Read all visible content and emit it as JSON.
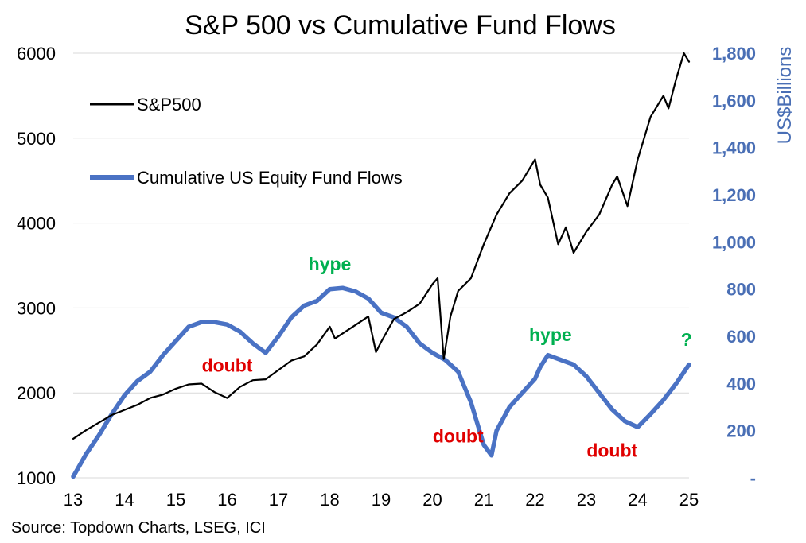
{
  "chart_data": {
    "type": "line",
    "title": "S&P 500 vs Cumulative Fund Flows",
    "y2label": "US$Billions",
    "source": "Source: Topdown Charts, LSEG, ICI",
    "grid": "horizontal",
    "legend_position": "top-left",
    "xlim": [
      13,
      25
    ],
    "x_ticks": [
      13,
      14,
      15,
      16,
      17,
      18,
      19,
      20,
      21,
      22,
      23,
      24,
      25
    ],
    "x_tick_labels": [
      "13",
      "14",
      "15",
      "16",
      "17",
      "18",
      "19",
      "20",
      "21",
      "22",
      "23",
      "24",
      "25"
    ],
    "ylim": [
      1000,
      6000
    ],
    "y_ticks": [
      1000,
      2000,
      3000,
      4000,
      5000,
      6000
    ],
    "y_tick_labels": [
      "1000",
      "2000",
      "3000",
      "4000",
      "5000",
      "6000"
    ],
    "y2lim": [
      0,
      1800
    ],
    "y2_ticks": [
      0,
      200,
      400,
      600,
      800,
      1000,
      1200,
      1400,
      1600,
      1800
    ],
    "y2_tick_labels": [
      "-",
      "200",
      "400",
      "600",
      "800",
      "1,000",
      "1,200",
      "1,400",
      "1,600",
      "1,800"
    ],
    "series": [
      {
        "name": "S&P500",
        "axis": "left",
        "color": "#000000",
        "points": [
          [
            13.0,
            1460
          ],
          [
            13.25,
            1560
          ],
          [
            13.5,
            1650
          ],
          [
            13.75,
            1740
          ],
          [
            14.0,
            1800
          ],
          [
            14.25,
            1860
          ],
          [
            14.5,
            1940
          ],
          [
            14.75,
            1980
          ],
          [
            15.0,
            2050
          ],
          [
            15.25,
            2100
          ],
          [
            15.5,
            2110
          ],
          [
            15.75,
            2010
          ],
          [
            16.0,
            1940
          ],
          [
            16.25,
            2070
          ],
          [
            16.5,
            2150
          ],
          [
            16.75,
            2160
          ],
          [
            17.0,
            2270
          ],
          [
            17.25,
            2380
          ],
          [
            17.5,
            2430
          ],
          [
            17.75,
            2570
          ],
          [
            18.0,
            2780
          ],
          [
            18.1,
            2640
          ],
          [
            18.25,
            2700
          ],
          [
            18.5,
            2800
          ],
          [
            18.75,
            2900
          ],
          [
            18.9,
            2480
          ],
          [
            19.0,
            2600
          ],
          [
            19.25,
            2870
          ],
          [
            19.5,
            2950
          ],
          [
            19.75,
            3050
          ],
          [
            20.0,
            3280
          ],
          [
            20.1,
            3350
          ],
          [
            20.22,
            2400
          ],
          [
            20.35,
            2900
          ],
          [
            20.5,
            3200
          ],
          [
            20.75,
            3350
          ],
          [
            21.0,
            3750
          ],
          [
            21.25,
            4100
          ],
          [
            21.5,
            4350
          ],
          [
            21.75,
            4500
          ],
          [
            22.0,
            4750
          ],
          [
            22.1,
            4450
          ],
          [
            22.25,
            4300
          ],
          [
            22.45,
            3750
          ],
          [
            22.6,
            3950
          ],
          [
            22.75,
            3650
          ],
          [
            23.0,
            3900
          ],
          [
            23.25,
            4100
          ],
          [
            23.5,
            4450
          ],
          [
            23.6,
            4550
          ],
          [
            23.8,
            4200
          ],
          [
            24.0,
            4750
          ],
          [
            24.25,
            5250
          ],
          [
            24.5,
            5500
          ],
          [
            24.6,
            5350
          ],
          [
            24.75,
            5700
          ],
          [
            24.9,
            6000
          ],
          [
            25.0,
            5900
          ]
        ]
      },
      {
        "name": "Cumulative US Equity Fund Flows",
        "axis": "right",
        "color": "#4a72c4",
        "points": [
          [
            13.0,
            5
          ],
          [
            13.25,
            100
          ],
          [
            13.5,
            180
          ],
          [
            13.75,
            270
          ],
          [
            14.0,
            350
          ],
          [
            14.25,
            410
          ],
          [
            14.5,
            450
          ],
          [
            14.75,
            520
          ],
          [
            15.0,
            580
          ],
          [
            15.25,
            640
          ],
          [
            15.5,
            660
          ],
          [
            15.75,
            660
          ],
          [
            16.0,
            650
          ],
          [
            16.25,
            620
          ],
          [
            16.5,
            570
          ],
          [
            16.75,
            530
          ],
          [
            17.0,
            600
          ],
          [
            17.25,
            680
          ],
          [
            17.5,
            730
          ],
          [
            17.75,
            750
          ],
          [
            18.0,
            800
          ],
          [
            18.25,
            805
          ],
          [
            18.5,
            790
          ],
          [
            18.75,
            760
          ],
          [
            19.0,
            700
          ],
          [
            19.25,
            680
          ],
          [
            19.5,
            640
          ],
          [
            19.75,
            570
          ],
          [
            20.0,
            530
          ],
          [
            20.25,
            500
          ],
          [
            20.5,
            450
          ],
          [
            20.75,
            320
          ],
          [
            21.0,
            140
          ],
          [
            21.15,
            95
          ],
          [
            21.25,
            200
          ],
          [
            21.5,
            300
          ],
          [
            21.75,
            360
          ],
          [
            22.0,
            420
          ],
          [
            22.1,
            470
          ],
          [
            22.25,
            520
          ],
          [
            22.5,
            500
          ],
          [
            22.75,
            480
          ],
          [
            23.0,
            430
          ],
          [
            23.25,
            360
          ],
          [
            23.5,
            290
          ],
          [
            23.75,
            240
          ],
          [
            24.0,
            215
          ],
          [
            24.25,
            270
          ],
          [
            24.5,
            330
          ],
          [
            24.75,
            400
          ],
          [
            25.0,
            480
          ]
        ]
      }
    ],
    "annotations": [
      {
        "text": "hype",
        "x": 18.0,
        "y2": 880,
        "color": "#00b050"
      },
      {
        "text": "doubt",
        "x": 16.0,
        "y2": 450,
        "color": "#e00000"
      },
      {
        "text": "hype",
        "x": 22.3,
        "y2": 580,
        "color": "#00b050"
      },
      {
        "text": "doubt",
        "x": 20.5,
        "y2": 150,
        "color": "#e00000"
      },
      {
        "text": "doubt",
        "x": 23.5,
        "y2": 90,
        "color": "#e00000"
      },
      {
        "text": "?",
        "x": 24.95,
        "y2": 560,
        "color": "#00b050"
      }
    ]
  }
}
